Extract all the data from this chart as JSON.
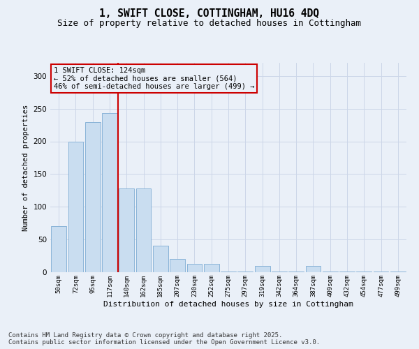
{
  "title_line1": "1, SWIFT CLOSE, COTTINGHAM, HU16 4DQ",
  "title_line2": "Size of property relative to detached houses in Cottingham",
  "xlabel": "Distribution of detached houses by size in Cottingham",
  "ylabel": "Number of detached properties",
  "categories": [
    "50sqm",
    "72sqm",
    "95sqm",
    "117sqm",
    "140sqm",
    "162sqm",
    "185sqm",
    "207sqm",
    "230sqm",
    "252sqm",
    "275sqm",
    "297sqm",
    "319sqm",
    "342sqm",
    "364sqm",
    "387sqm",
    "409sqm",
    "432sqm",
    "454sqm",
    "477sqm",
    "499sqm"
  ],
  "values": [
    70,
    199,
    229,
    243,
    128,
    128,
    41,
    20,
    13,
    13,
    1,
    1,
    10,
    1,
    1,
    10,
    1,
    1,
    1,
    1,
    1
  ],
  "bar_color": "#c9ddf0",
  "bar_edge_color": "#8ab4d8",
  "grid_color": "#ccd6e8",
  "background_color": "#eaf0f8",
  "vertical_line_x": 3.5,
  "vertical_line_color": "#cc0000",
  "annotation_text": "1 SWIFT CLOSE: 124sqm\n← 52% of detached houses are smaller (564)\n46% of semi-detached houses are larger (499) →",
  "annotation_box_color": "#cc0000",
  "ylim": [
    0,
    320
  ],
  "yticks": [
    0,
    50,
    100,
    150,
    200,
    250,
    300
  ],
  "footnote": "Contains HM Land Registry data © Crown copyright and database right 2025.\nContains public sector information licensed under the Open Government Licence v3.0.",
  "title_fontsize": 10.5,
  "subtitle_fontsize": 9,
  "annotation_fontsize": 7.5,
  "footnote_fontsize": 6.5
}
